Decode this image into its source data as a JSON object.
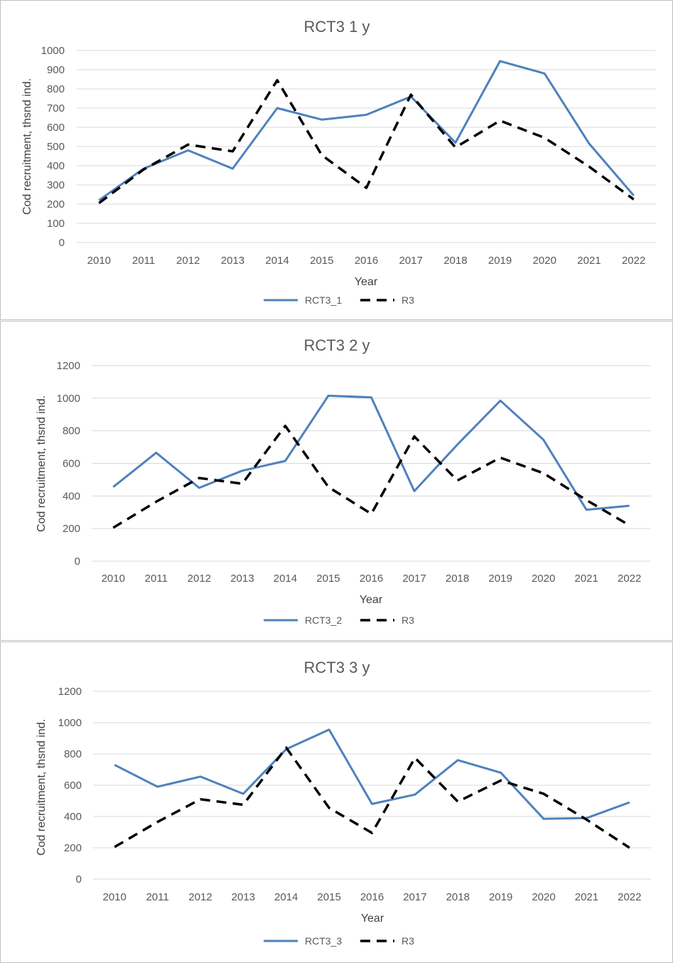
{
  "chart_data": [
    {
      "type": "line",
      "title": "RCT3 1 y",
      "xlabel": "Year",
      "ylabel": "Cod recruitment, thsnd ind.",
      "ylim": [
        0,
        1000
      ],
      "yticks": [
        0,
        100,
        200,
        300,
        400,
        500,
        600,
        700,
        800,
        900,
        1000
      ],
      "categories": [
        "2010",
        "2011",
        "2012",
        "2013",
        "2014",
        "2015",
        "2016",
        "2017",
        "2018",
        "2019",
        "2020",
        "2021",
        "2022"
      ],
      "grid": true,
      "legend": "bottom",
      "series": [
        {
          "name": "RCT3_1",
          "color": "#4f81bd",
          "style": "solid",
          "values": [
            220,
            385,
            480,
            385,
            700,
            640,
            665,
            760,
            520,
            945,
            880,
            515,
            245
          ]
        },
        {
          "name": "R3",
          "color": "#000000",
          "style": "dashed",
          "values": [
            205,
            380,
            510,
            475,
            845,
            455,
            285,
            770,
            495,
            635,
            545,
            395,
            225
          ]
        }
      ]
    },
    {
      "type": "line",
      "title": "RCT3 2 y",
      "xlabel": "Year",
      "ylabel": "Cod recruitment, thsnd ind.",
      "ylim": [
        0,
        1200
      ],
      "yticks": [
        0,
        200,
        400,
        600,
        800,
        1000,
        1200
      ],
      "categories": [
        "2010",
        "2011",
        "2012",
        "2013",
        "2014",
        "2015",
        "2016",
        "2017",
        "2018",
        "2019",
        "2020",
        "2021",
        "2022"
      ],
      "grid": true,
      "legend": "bottom",
      "series": [
        {
          "name": "RCT3_2",
          "color": "#4f81bd",
          "style": "solid",
          "values": [
            455,
            665,
            450,
            555,
            615,
            1015,
            1005,
            430,
            715,
            985,
            745,
            315,
            340
          ]
        },
        {
          "name": "R3",
          "color": "#000000",
          "style": "dashed",
          "values": [
            205,
            365,
            510,
            475,
            830,
            455,
            290,
            765,
            495,
            635,
            540,
            375,
            220
          ]
        }
      ]
    },
    {
      "type": "line",
      "title": "RCT3 3 y",
      "xlabel": "Year",
      "ylabel": "Cod recruitment, thsnd ind.",
      "ylim": [
        0,
        1200
      ],
      "yticks": [
        0,
        200,
        400,
        600,
        800,
        1000,
        1200
      ],
      "categories": [
        "2010",
        "2011",
        "2012",
        "2013",
        "2014",
        "2015",
        "2016",
        "2017",
        "2018",
        "2019",
        "2020",
        "2021",
        "2022"
      ],
      "grid": true,
      "legend": "bottom",
      "series": [
        {
          "name": "RCT3_3",
          "color": "#4f81bd",
          "style": "solid",
          "values": [
            730,
            590,
            655,
            545,
            830,
            955,
            480,
            540,
            760,
            680,
            385,
            390,
            490
          ]
        },
        {
          "name": "R3",
          "color": "#000000",
          "style": "dashed",
          "values": [
            205,
            365,
            510,
            475,
            840,
            455,
            295,
            775,
            495,
            630,
            545,
            380,
            200
          ]
        }
      ]
    }
  ]
}
